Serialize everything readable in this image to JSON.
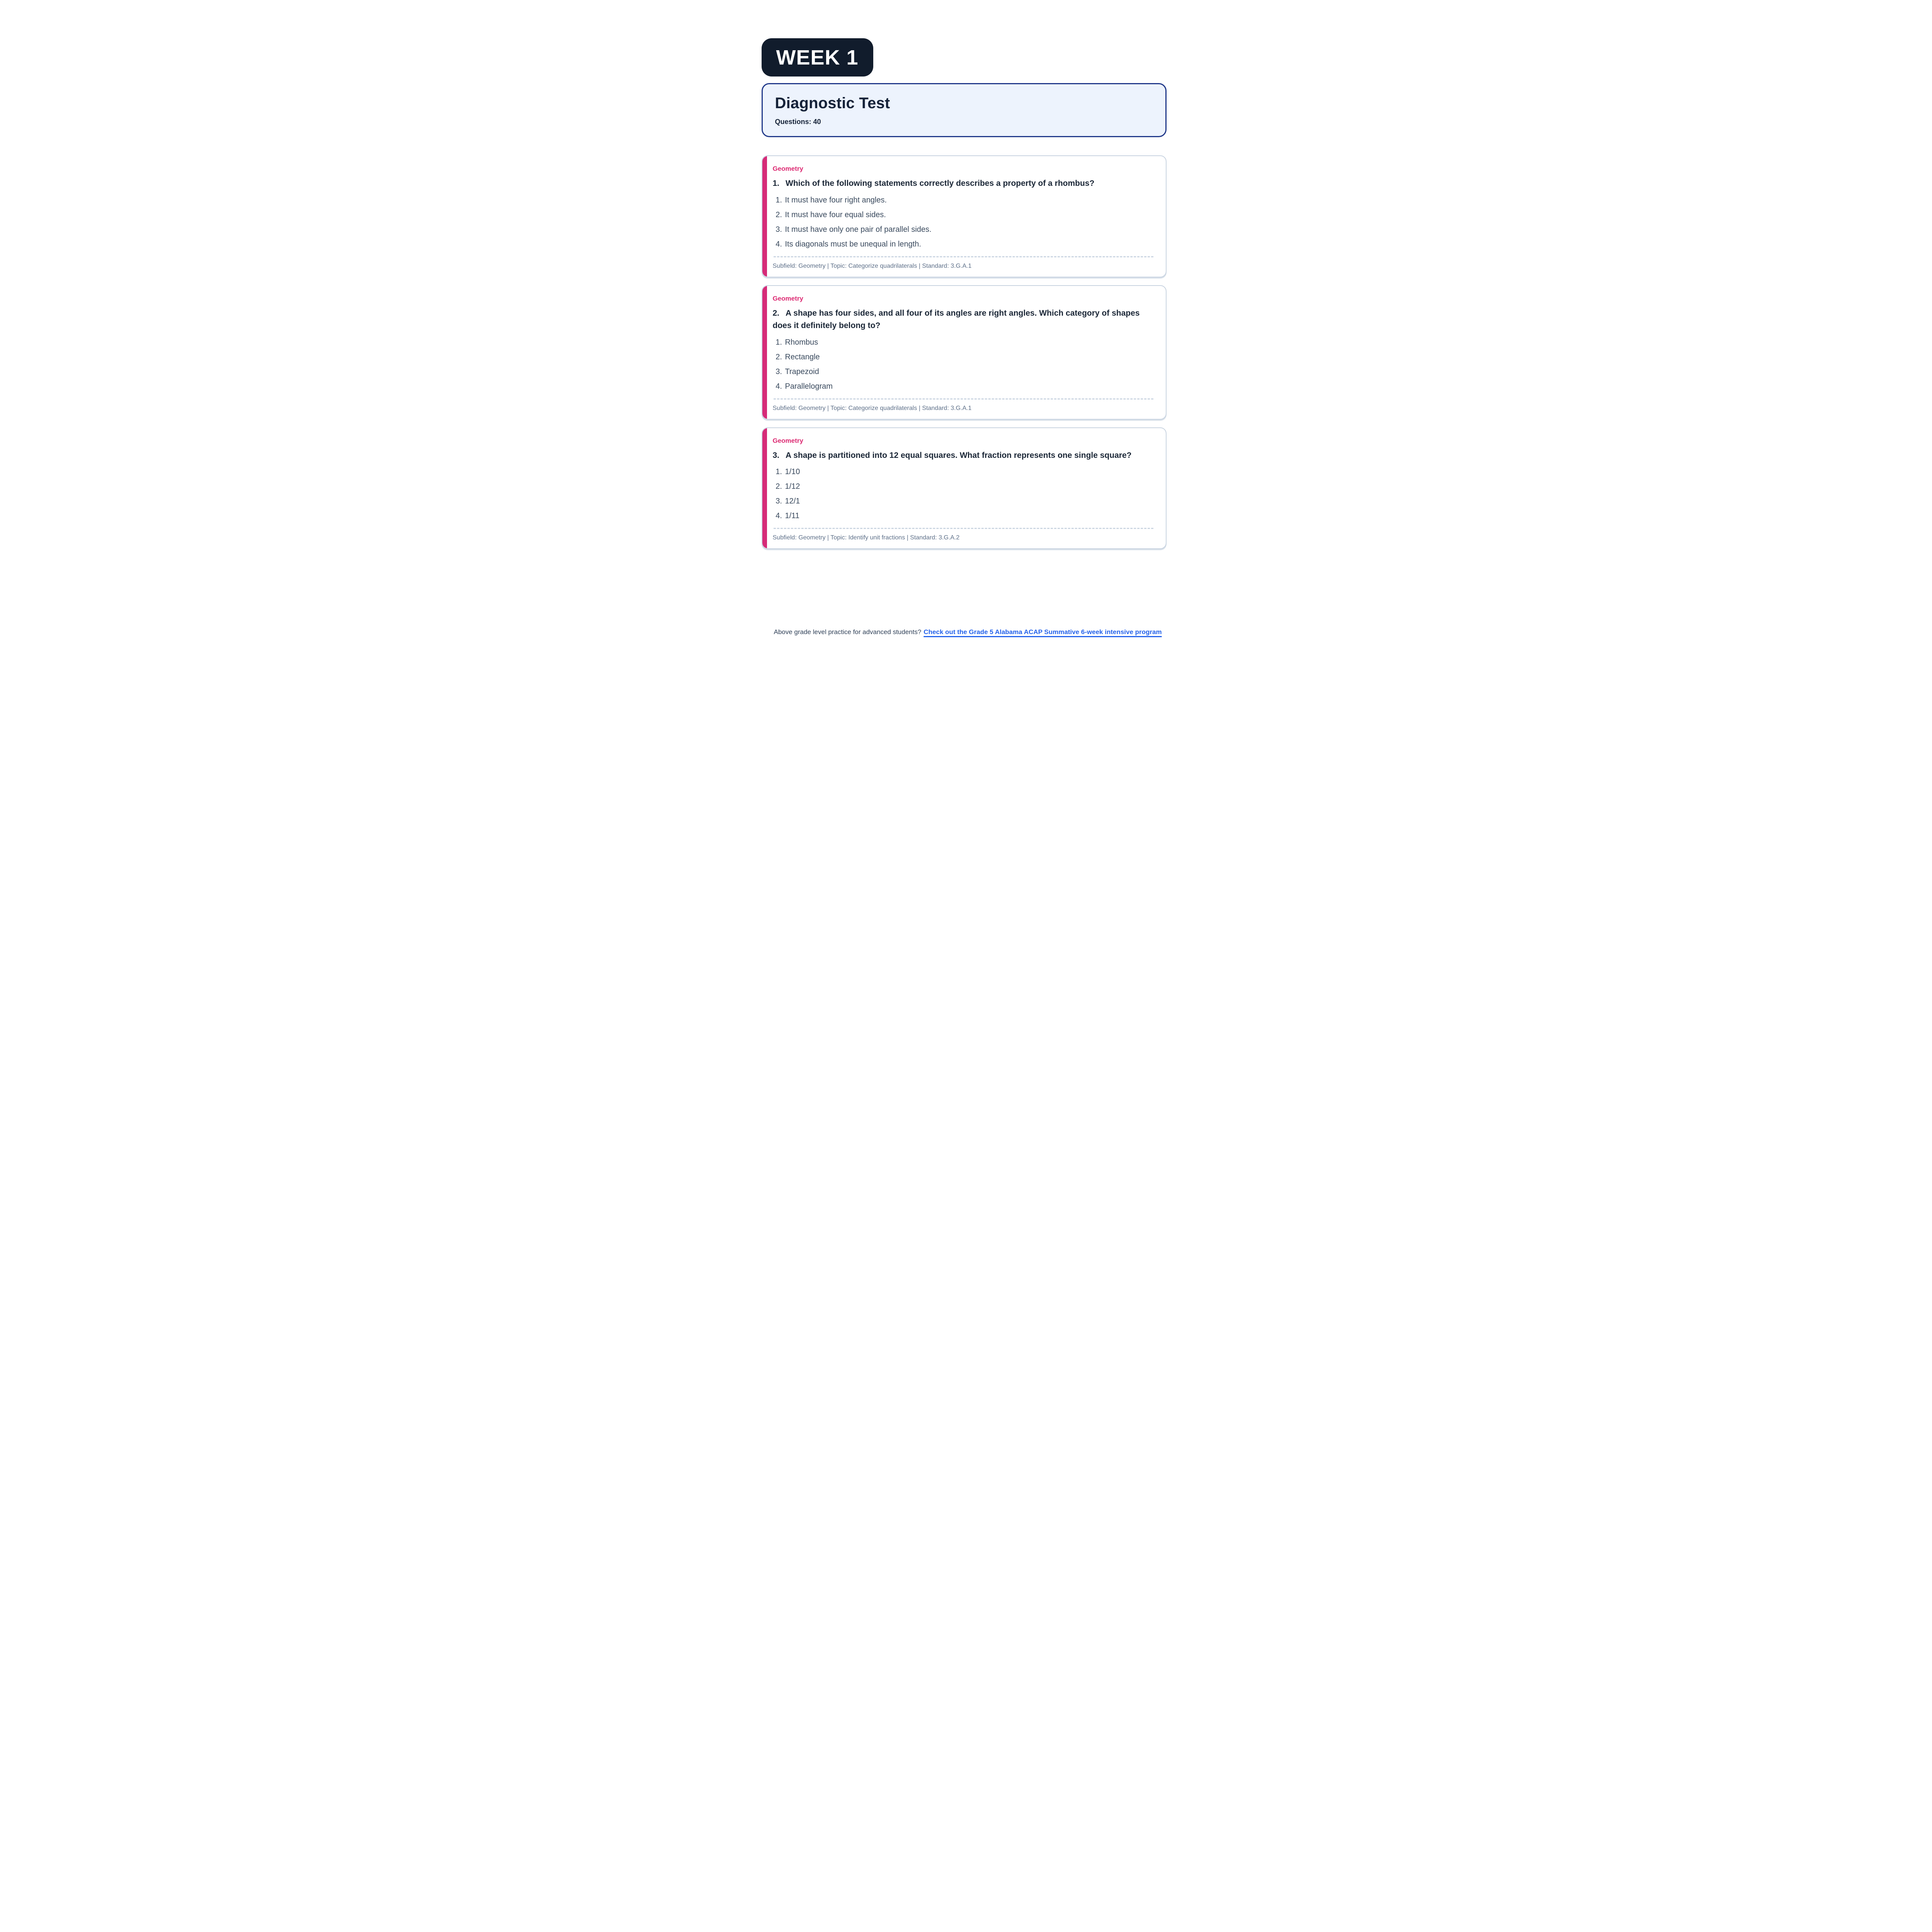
{
  "week_badge": "WEEK 1",
  "test_card": {
    "title": "Diagnostic Test",
    "questions_label": "Questions: 40"
  },
  "questions": [
    {
      "subject": "Geometry",
      "number": "1.",
      "text": "Which of the following statements correctly describes a property of a rhombus?",
      "options": [
        "It must have four right angles.",
        "It must have four equal sides.",
        "It must have only one pair of parallel sides.",
        "Its diagonals must be unequal in length."
      ],
      "meta": "Subfield: Geometry | Topic: Categorize quadrilaterals | Standard: 3.G.A.1"
    },
    {
      "subject": "Geometry",
      "number": "2.",
      "text": "A shape has four sides, and all four of its angles are right angles. Which category of shapes does it definitely belong to?",
      "options": [
        "Rhombus",
        "Rectangle",
        "Trapezoid",
        "Parallelogram"
      ],
      "meta": "Subfield: Geometry | Topic: Categorize quadrilaterals | Standard: 3.G.A.1"
    },
    {
      "subject": "Geometry",
      "number": "3.",
      "text": "A shape is partitioned into 12 equal squares. What fraction represents one single square?",
      "options": [
        "1/10",
        "1/12",
        "12/1",
        "1/11"
      ],
      "meta": "Subfield: Geometry | Topic: Identify unit fractions | Standard: 3.G.A.2"
    }
  ],
  "footer": {
    "prompt": "Above grade level practice for advanced students?",
    "link": "Check out the Grade 5 Alabama ACAP Summative 6-week intensive program"
  },
  "colors": {
    "badge_navy": "#111c2c",
    "card_border_navy": "#21398a",
    "card_bg_blue": "#edf3fd",
    "accent_pink": "#d62b78",
    "subject_pink": "#dc2a72",
    "question_navy": "#1b2737",
    "option_slate": "#3a4a5e",
    "meta_gray": "#5e7089",
    "link_blue": "#2563eb",
    "divider_gray": "#ccd6e2"
  }
}
